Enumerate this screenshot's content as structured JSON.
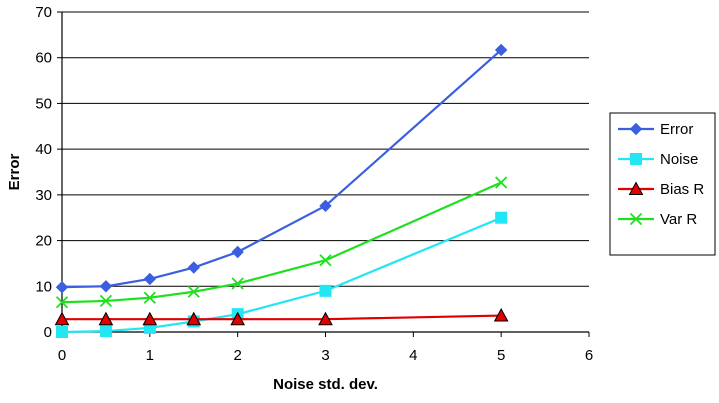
{
  "chart_data": {
    "type": "line",
    "title": "",
    "xlabel": "Noise std. dev.",
    "ylabel": "Error",
    "xlim": [
      0,
      6
    ],
    "ylim": [
      0,
      70
    ],
    "xticks": [
      "0",
      "1",
      "2",
      "3",
      "4",
      "5",
      "6"
    ],
    "yticks": [
      "0",
      "10",
      "20",
      "30",
      "40",
      "50",
      "60",
      "70"
    ],
    "grid": "horizontal",
    "legend_position": "right",
    "series": [
      {
        "name": "Error",
        "color": "#3b5fe0",
        "marker": "diamond",
        "x": [
          0,
          0.5,
          1,
          1.5,
          2,
          3,
          5
        ],
        "y": [
          9.8,
          10.0,
          11.6,
          14.1,
          17.5,
          27.6,
          61.7
        ]
      },
      {
        "name": "Noise",
        "color": "#22e6f2",
        "marker": "square",
        "x": [
          0,
          0.5,
          1,
          1.5,
          2,
          3,
          5
        ],
        "y": [
          0.0,
          0.2,
          0.9,
          2.3,
          3.9,
          9.0,
          25.0
        ]
      },
      {
        "name": "Bias R",
        "color": "#e00000",
        "marker": "triangle",
        "x": [
          0,
          0.5,
          1,
          1.5,
          2,
          3,
          5
        ],
        "y": [
          2.8,
          2.8,
          2.8,
          2.8,
          2.8,
          2.8,
          3.6
        ]
      },
      {
        "name": "Var R",
        "color": "#1ee01e",
        "marker": "x",
        "x": [
          0,
          0.5,
          1,
          1.5,
          2,
          3,
          5
        ],
        "y": [
          6.5,
          6.8,
          7.5,
          8.8,
          10.6,
          15.7,
          32.7
        ]
      }
    ]
  }
}
